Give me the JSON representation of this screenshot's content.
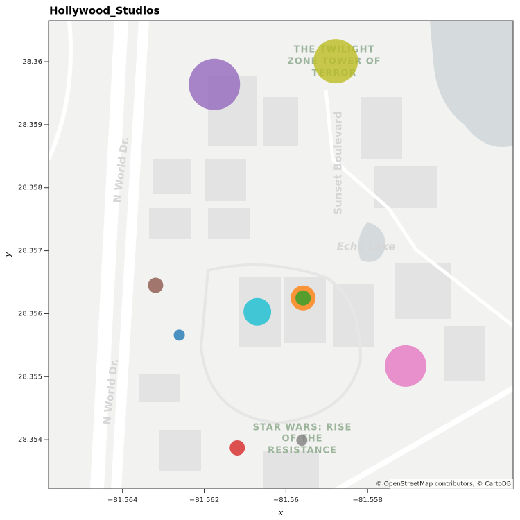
{
  "chart_data": {
    "type": "scatter",
    "title": "Hollywood_Studios",
    "x_label": "x",
    "y_label": "y",
    "xlim": [
      -81.56581,
      -81.55444
    ],
    "ylim": [
      28.35322,
      28.36065
    ],
    "xticks": [
      {
        "value": -81.564,
        "label": "−81.564"
      },
      {
        "value": -81.562,
        "label": "−81.562"
      },
      {
        "value": -81.56,
        "label": "−81.56"
      },
      {
        "value": -81.558,
        "label": "−81.558"
      }
    ],
    "yticks": [
      28.354,
      28.355,
      28.356,
      28.357,
      28.358,
      28.359,
      28.36
    ],
    "x": [
      -81.56175,
      -81.55878,
      -81.56319,
      -81.56261,
      -81.5607,
      -81.55958,
      -81.55958,
      -81.55707,
      -81.55961,
      -81.56119
    ],
    "y": [
      28.35964,
      28.36001,
      28.35645,
      28.35566,
      28.35603,
      28.35625,
      28.35625,
      28.35517,
      28.35399,
      28.35387
    ],
    "sizes": [
      37,
      32,
      11,
      8,
      20,
      18,
      11,
      30,
      8,
      11
    ],
    "colors": [
      "#9467bd",
      "#bcbd22",
      "#8c564b",
      "#1f77b4",
      "#17becf",
      "#ff7f0e",
      "#2ca02c",
      "#e377c2",
      "#7f7f7f",
      "#d62728"
    ],
    "basemap_labels": [
      "THE TWILIGHT",
      "ZONE TOWER OF",
      "TERROR",
      "Sunset Boulevard",
      "Echo Lake",
      "N World Dr.",
      "N World Dr.",
      "STAR WARS: RISE",
      "OF THE",
      "RESISTANCE"
    ],
    "attribution": "© OpenStreetMap contributors, © CartoDB"
  }
}
